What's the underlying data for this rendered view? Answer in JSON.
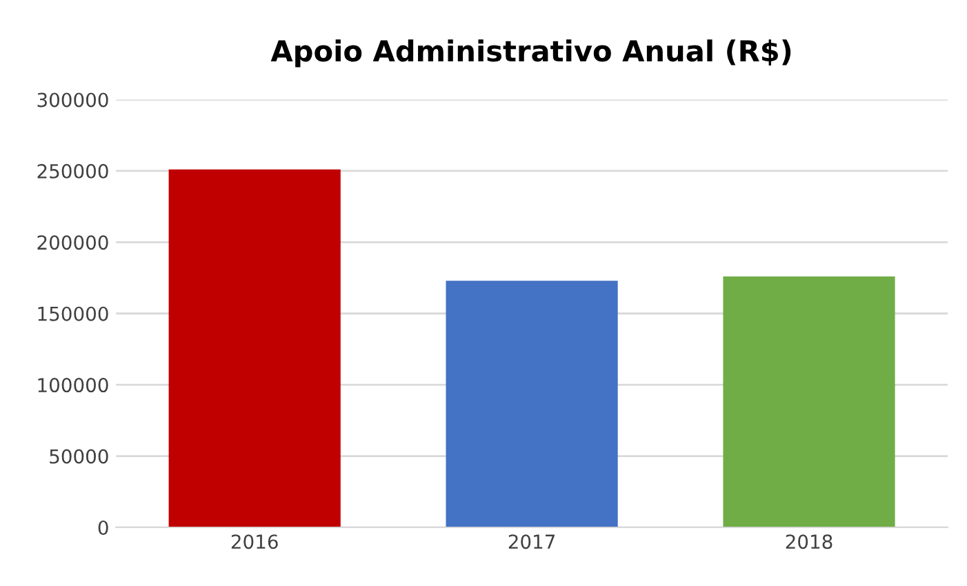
{
  "chart_data": {
    "type": "bar",
    "title": "Apoio Administrativo Anual (R$)",
    "categories": [
      "2016",
      "2017",
      "2018"
    ],
    "values": [
      251000,
      173000,
      176000
    ],
    "colors": [
      "#c00000",
      "#4472c4",
      "#70ad47"
    ],
    "ylim": [
      0,
      300000
    ],
    "yticks": [
      0,
      50000,
      100000,
      150000,
      200000,
      250000,
      300000
    ],
    "grid": "y"
  }
}
